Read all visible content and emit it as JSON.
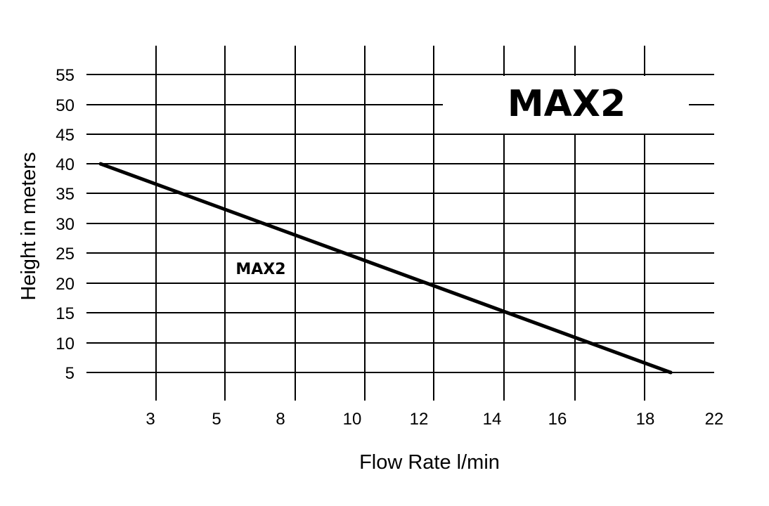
{
  "chart_data": {
    "type": "line",
    "title": "MAX2",
    "xlabel": "Flow Rate l/min",
    "ylabel": "Height in meters",
    "x_tick_labels": [
      "3",
      "5",
      "8",
      "10",
      "12",
      "14",
      "16",
      "18",
      "22"
    ],
    "y_tick_labels": [
      "5",
      "10",
      "15",
      "20",
      "25",
      "30",
      "35",
      "40",
      "45",
      "50",
      "55"
    ],
    "ylim": [
      5,
      55
    ],
    "grid": true,
    "series": [
      {
        "name": "MAX2",
        "color": "#000000",
        "points": [
          {
            "x": 1.3,
            "y": 40
          },
          {
            "x": 18.8,
            "y": 5
          }
        ]
      }
    ]
  }
}
